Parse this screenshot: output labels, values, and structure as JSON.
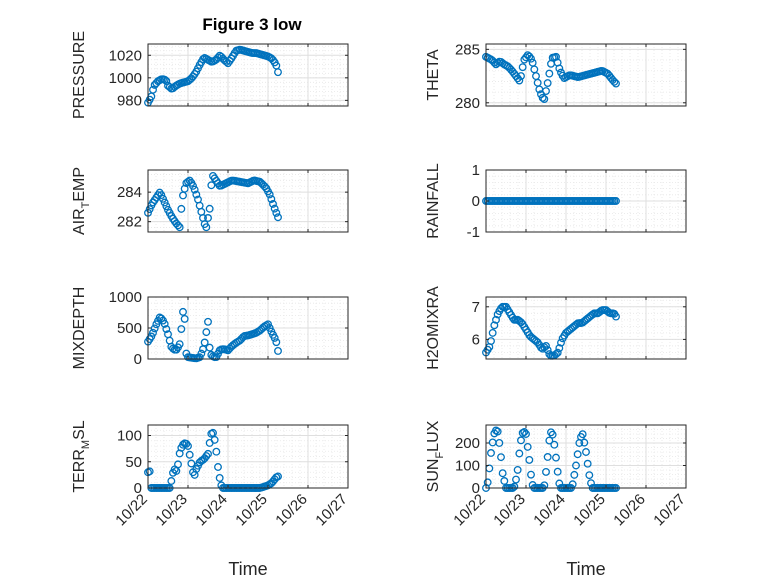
{
  "figure": {
    "title": "Figure 3 low",
    "background": "#ffffff"
  },
  "style": {
    "marker_color": "#0072BD",
    "axis_color": "#262626",
    "grid_color": "#dfdfdf"
  },
  "chart_data": [
    {
      "type": "scatter",
      "ylabel": "PRESSURE",
      "ylabel_sub": "",
      "xlim": [
        0,
        5
      ],
      "ylim": [
        975,
        1030
      ],
      "yticks": [
        980,
        1000,
        1020
      ],
      "yticklabels": [
        "980",
        "1000",
        "1020"
      ],
      "xticks": [
        0,
        1,
        2,
        3,
        4,
        5
      ],
      "xticklabels": [],
      "knots": [
        [
          0.0,
          978
        ],
        [
          0.08,
          983
        ],
        [
          0.15,
          993
        ],
        [
          0.25,
          997
        ],
        [
          0.35,
          999
        ],
        [
          0.45,
          998
        ],
        [
          0.5,
          993
        ],
        [
          0.6,
          990
        ],
        [
          0.7,
          993
        ],
        [
          0.8,
          995
        ],
        [
          0.9,
          996
        ],
        [
          1.0,
          997
        ],
        [
          1.1,
          1000
        ],
        [
          1.2,
          1005
        ],
        [
          1.3,
          1012
        ],
        [
          1.4,
          1018
        ],
        [
          1.5,
          1016
        ],
        [
          1.6,
          1014
        ],
        [
          1.7,
          1016
        ],
        [
          1.8,
          1020
        ],
        [
          1.9,
          1016
        ],
        [
          2.0,
          1013
        ],
        [
          2.1,
          1018
        ],
        [
          2.2,
          1024
        ],
        [
          2.3,
          1025
        ],
        [
          2.4,
          1024
        ],
        [
          2.5,
          1023
        ],
        [
          2.6,
          1022
        ],
        [
          2.7,
          1022
        ],
        [
          2.8,
          1021
        ],
        [
          2.9,
          1020
        ],
        [
          3.0,
          1019
        ],
        [
          3.1,
          1017
        ],
        [
          3.2,
          1012
        ],
        [
          3.25,
          1005
        ]
      ]
    },
    {
      "type": "scatter",
      "ylabel": "THETA",
      "ylabel_sub": "",
      "xlim": [
        0,
        5
      ],
      "ylim": [
        279.7,
        285.5
      ],
      "yticks": [
        280,
        285
      ],
      "yticklabels": [
        "280",
        "285"
      ],
      "xticks": [
        0,
        1,
        2,
        3,
        4,
        5
      ],
      "xticklabels": [],
      "knots": [
        [
          0.0,
          284.3
        ],
        [
          0.15,
          284.0
        ],
        [
          0.25,
          283.6
        ],
        [
          0.35,
          283.9
        ],
        [
          0.45,
          283.6
        ],
        [
          0.55,
          283.4
        ],
        [
          0.65,
          283.0
        ],
        [
          0.75,
          282.5
        ],
        [
          0.85,
          282.0
        ],
        [
          0.95,
          284.0
        ],
        [
          1.05,
          284.5
        ],
        [
          1.15,
          284.0
        ],
        [
          1.25,
          282.5
        ],
        [
          1.35,
          281.0
        ],
        [
          1.45,
          280.2
        ],
        [
          1.55,
          282.0
        ],
        [
          1.65,
          284.2
        ],
        [
          1.75,
          284.3
        ],
        [
          1.85,
          283.0
        ],
        [
          1.95,
          282.3
        ],
        [
          2.1,
          282.6
        ],
        [
          2.3,
          282.4
        ],
        [
          2.5,
          282.6
        ],
        [
          2.7,
          282.8
        ],
        [
          2.9,
          283.0
        ],
        [
          3.05,
          282.7
        ],
        [
          3.15,
          282.2
        ],
        [
          3.25,
          281.8
        ]
      ]
    },
    {
      "type": "scatter",
      "ylabel": "AIR",
      "ylabel_sub": "T",
      "ylabel_rest": "EMP",
      "xlim": [
        0,
        5
      ],
      "ylim": [
        281.3,
        285.5
      ],
      "yticks": [
        282,
        284
      ],
      "yticklabels": [
        "282",
        "284"
      ],
      "xticks": [
        0,
        1,
        2,
        3,
        4,
        5
      ],
      "xticklabels": [],
      "knots": [
        [
          0.0,
          282.6
        ],
        [
          0.1,
          283.2
        ],
        [
          0.2,
          283.6
        ],
        [
          0.3,
          284.0
        ],
        [
          0.4,
          283.4
        ],
        [
          0.5,
          282.8
        ],
        [
          0.6,
          282.3
        ],
        [
          0.7,
          281.9
        ],
        [
          0.8,
          281.6
        ],
        [
          0.85,
          283.5
        ],
        [
          0.95,
          284.6
        ],
        [
          1.05,
          284.8
        ],
        [
          1.15,
          284.3
        ],
        [
          1.25,
          283.5
        ],
        [
          1.35,
          282.5
        ],
        [
          1.45,
          281.5
        ],
        [
          1.55,
          283.0
        ],
        [
          1.6,
          285.2
        ],
        [
          1.7,
          284.8
        ],
        [
          1.8,
          284.4
        ],
        [
          1.95,
          284.6
        ],
        [
          2.1,
          284.8
        ],
        [
          2.3,
          284.7
        ],
        [
          2.5,
          284.6
        ],
        [
          2.65,
          284.8
        ],
        [
          2.8,
          284.7
        ],
        [
          2.95,
          284.3
        ],
        [
          3.05,
          283.8
        ],
        [
          3.15,
          283.0
        ],
        [
          3.25,
          282.3
        ]
      ]
    },
    {
      "type": "scatter",
      "ylabel": "RAINFALL",
      "ylabel_sub": "",
      "xlim": [
        0,
        5
      ],
      "ylim": [
        -1,
        1
      ],
      "yticks": [
        -1,
        0,
        1
      ],
      "yticklabels": [
        "-1",
        "0",
        "1"
      ],
      "xticks": [
        0,
        1,
        2,
        3,
        4,
        5
      ],
      "xticklabels": [],
      "knots": [
        [
          0.0,
          0
        ],
        [
          3.25,
          0
        ]
      ]
    },
    {
      "type": "scatter",
      "ylabel": "MIXDEPTH",
      "ylabel_sub": "",
      "xlim": [
        0,
        5
      ],
      "ylim": [
        0,
        1000
      ],
      "yticks": [
        0,
        500,
        1000
      ],
      "yticklabels": [
        "0",
        "500",
        "1000"
      ],
      "xticks": [
        0,
        1,
        2,
        3,
        4,
        5
      ],
      "xticklabels": [],
      "knots": [
        [
          0.0,
          280
        ],
        [
          0.1,
          380
        ],
        [
          0.2,
          550
        ],
        [
          0.3,
          680
        ],
        [
          0.4,
          600
        ],
        [
          0.5,
          400
        ],
        [
          0.58,
          200
        ],
        [
          0.65,
          150
        ],
        [
          0.72,
          150
        ],
        [
          0.8,
          250
        ],
        [
          0.85,
          600
        ],
        [
          0.9,
          920
        ],
        [
          0.95,
          100
        ],
        [
          1.0,
          30
        ],
        [
          1.1,
          20
        ],
        [
          1.2,
          10
        ],
        [
          1.3,
          30
        ],
        [
          1.4,
          200
        ],
        [
          1.5,
          600
        ],
        [
          1.55,
          100
        ],
        [
          1.6,
          50
        ],
        [
          1.7,
          20
        ],
        [
          1.8,
          150
        ],
        [
          1.9,
          160
        ],
        [
          2.0,
          140
        ],
        [
          2.1,
          210
        ],
        [
          2.2,
          260
        ],
        [
          2.3,
          300
        ],
        [
          2.4,
          370
        ],
        [
          2.5,
          380
        ],
        [
          2.6,
          400
        ],
        [
          2.7,
          420
        ],
        [
          2.8,
          460
        ],
        [
          2.9,
          520
        ],
        [
          3.0,
          560
        ],
        [
          3.1,
          420
        ],
        [
          3.2,
          300
        ],
        [
          3.25,
          130
        ]
      ]
    },
    {
      "type": "scatter",
      "ylabel": "H2OMIXRA",
      "ylabel_sub": "",
      "xlim": [
        0,
        5
      ],
      "ylim": [
        5.4,
        7.3
      ],
      "yticks": [
        6,
        7
      ],
      "yticklabels": [
        "6",
        "7"
      ],
      "xticks": [
        0,
        1,
        2,
        3,
        4,
        5
      ],
      "xticklabels": [],
      "knots": [
        [
          0.0,
          5.6
        ],
        [
          0.1,
          5.8
        ],
        [
          0.2,
          6.4
        ],
        [
          0.3,
          6.8
        ],
        [
          0.4,
          7.0
        ],
        [
          0.5,
          7.0
        ],
        [
          0.6,
          6.8
        ],
        [
          0.7,
          6.6
        ],
        [
          0.8,
          6.6
        ],
        [
          0.9,
          6.5
        ],
        [
          1.0,
          6.3
        ],
        [
          1.1,
          6.1
        ],
        [
          1.2,
          6.0
        ],
        [
          1.3,
          5.9
        ],
        [
          1.4,
          5.7
        ],
        [
          1.5,
          5.8
        ],
        [
          1.6,
          5.5
        ],
        [
          1.7,
          5.5
        ],
        [
          1.8,
          5.6
        ],
        [
          1.9,
          6.0
        ],
        [
          2.0,
          6.2
        ],
        [
          2.1,
          6.3
        ],
        [
          2.2,
          6.4
        ],
        [
          2.3,
          6.5
        ],
        [
          2.4,
          6.5
        ],
        [
          2.5,
          6.6
        ],
        [
          2.6,
          6.7
        ],
        [
          2.7,
          6.8
        ],
        [
          2.8,
          6.8
        ],
        [
          2.9,
          6.9
        ],
        [
          3.0,
          6.9
        ],
        [
          3.1,
          6.8
        ],
        [
          3.2,
          6.8
        ],
        [
          3.25,
          6.7
        ]
      ]
    },
    {
      "type": "scatter",
      "ylabel": "TERR",
      "ylabel_sub": "M",
      "ylabel_rest": "SL",
      "xlim": [
        0,
        5
      ],
      "ylim": [
        0,
        120
      ],
      "yticks": [
        0,
        50,
        100
      ],
      "yticklabels": [
        "0",
        "50",
        "100"
      ],
      "xticks": [
        0,
        1,
        2,
        3,
        4,
        5
      ],
      "xticklabels": [
        "10/22",
        "10/23",
        "10/24",
        "10/25",
        "10/26",
        "10/27"
      ],
      "xlabel": "Time",
      "knots": [
        [
          0.0,
          30
        ],
        [
          0.05,
          32
        ],
        [
          0.08,
          0
        ],
        [
          0.2,
          0
        ],
        [
          0.3,
          0
        ],
        [
          0.4,
          0
        ],
        [
          0.55,
          0
        ],
        [
          0.6,
          20
        ],
        [
          0.65,
          38
        ],
        [
          0.7,
          30
        ],
        [
          0.75,
          45
        ],
        [
          0.8,
          70
        ],
        [
          0.85,
          80
        ],
        [
          0.9,
          85
        ],
        [
          0.95,
          85
        ],
        [
          1.0,
          80
        ],
        [
          1.05,
          60
        ],
        [
          1.1,
          40
        ],
        [
          1.15,
          20
        ],
        [
          1.2,
          35
        ],
        [
          1.3,
          50
        ],
        [
          1.4,
          55
        ],
        [
          1.5,
          65
        ],
        [
          1.55,
          90
        ],
        [
          1.6,
          110
        ],
        [
          1.65,
          100
        ],
        [
          1.7,
          75
        ],
        [
          1.75,
          40
        ],
        [
          1.8,
          15
        ],
        [
          1.85,
          0
        ],
        [
          2.0,
          0
        ],
        [
          2.2,
          0
        ],
        [
          2.5,
          0
        ],
        [
          2.8,
          0
        ],
        [
          3.0,
          5
        ],
        [
          3.1,
          10
        ],
        [
          3.2,
          20
        ],
        [
          3.25,
          22
        ]
      ]
    },
    {
      "type": "scatter",
      "ylabel": "SUN",
      "ylabel_sub": "F",
      "ylabel_rest": "LUX",
      "xlim": [
        0,
        5
      ],
      "ylim": [
        0,
        280
      ],
      "yticks": [
        0,
        100,
        200
      ],
      "yticklabels": [
        "0",
        "100",
        "200"
      ],
      "xticks": [
        0,
        1,
        2,
        3,
        4,
        5
      ],
      "xticklabels": [
        "10/22",
        "10/23",
        "10/24",
        "10/25",
        "10/26",
        "10/27"
      ],
      "xlabel": "Time",
      "knots": [
        [
          0.0,
          0
        ],
        [
          0.05,
          30
        ],
        [
          0.12,
          150
        ],
        [
          0.2,
          240
        ],
        [
          0.28,
          265
        ],
        [
          0.35,
          180
        ],
        [
          0.42,
          60
        ],
        [
          0.5,
          0
        ],
        [
          0.6,
          0
        ],
        [
          0.7,
          0
        ],
        [
          0.78,
          60
        ],
        [
          0.86,
          200
        ],
        [
          0.93,
          255
        ],
        [
          1.0,
          240
        ],
        [
          1.08,
          130
        ],
        [
          1.15,
          20
        ],
        [
          1.2,
          0
        ],
        [
          1.3,
          0
        ],
        [
          1.45,
          0
        ],
        [
          1.52,
          100
        ],
        [
          1.6,
          240
        ],
        [
          1.65,
          255
        ],
        [
          1.72,
          180
        ],
        [
          1.8,
          60
        ],
        [
          1.85,
          0
        ],
        [
          2.0,
          0
        ],
        [
          2.15,
          0
        ],
        [
          2.25,
          100
        ],
        [
          2.35,
          220
        ],
        [
          2.42,
          240
        ],
        [
          2.5,
          160
        ],
        [
          2.58,
          60
        ],
        [
          2.65,
          0
        ],
        [
          2.8,
          0
        ],
        [
          3.0,
          0
        ],
        [
          3.25,
          0
        ]
      ]
    }
  ]
}
